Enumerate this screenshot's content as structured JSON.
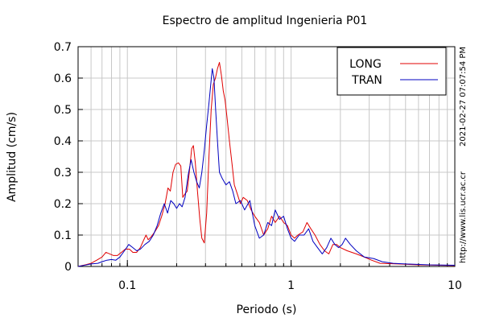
{
  "chart_data": {
    "type": "line",
    "title": "Espectro de amplitud Ingenieria P01",
    "xlabel": "Periodo (s)",
    "ylabel": "Amplitud (cm/s)",
    "x_scale": "log",
    "xlim": [
      0.05,
      10
    ],
    "ylim": [
      0,
      0.7
    ],
    "grid": true,
    "legend_position": "top-right",
    "x_tick_labels": [
      "0.1",
      "1",
      "10"
    ],
    "y_tick_labels": [
      "0",
      "0.1",
      "0.2",
      "0.3",
      "0.4",
      "0.5",
      "0.6",
      "0.7"
    ],
    "side_text_timestamp": "2021-02-27 07:07:54 PM",
    "side_text_url": "http://www.lis.ucr.ac.cr",
    "series": [
      {
        "name": "LONG",
        "color": "#e00000",
        "points": [
          [
            0.05,
            0.0
          ],
          [
            0.055,
            0.005
          ],
          [
            0.06,
            0.01
          ],
          [
            0.065,
            0.02
          ],
          [
            0.07,
            0.03
          ],
          [
            0.074,
            0.045
          ],
          [
            0.078,
            0.04
          ],
          [
            0.082,
            0.035
          ],
          [
            0.087,
            0.035
          ],
          [
            0.092,
            0.045
          ],
          [
            0.097,
            0.055
          ],
          [
            0.103,
            0.055
          ],
          [
            0.108,
            0.045
          ],
          [
            0.114,
            0.045
          ],
          [
            0.12,
            0.06
          ],
          [
            0.126,
            0.085
          ],
          [
            0.13,
            0.1
          ],
          [
            0.134,
            0.085
          ],
          [
            0.14,
            0.095
          ],
          [
            0.147,
            0.11
          ],
          [
            0.155,
            0.13
          ],
          [
            0.162,
            0.16
          ],
          [
            0.17,
            0.2
          ],
          [
            0.177,
            0.25
          ],
          [
            0.183,
            0.24
          ],
          [
            0.19,
            0.3
          ],
          [
            0.197,
            0.325
          ],
          [
            0.205,
            0.33
          ],
          [
            0.212,
            0.32
          ],
          [
            0.218,
            0.22
          ],
          [
            0.224,
            0.23
          ],
          [
            0.232,
            0.24
          ],
          [
            0.24,
            0.31
          ],
          [
            0.247,
            0.375
          ],
          [
            0.253,
            0.385
          ],
          [
            0.26,
            0.33
          ],
          [
            0.268,
            0.24
          ],
          [
            0.277,
            0.15
          ],
          [
            0.285,
            0.09
          ],
          [
            0.295,
            0.075
          ],
          [
            0.305,
            0.17
          ],
          [
            0.315,
            0.35
          ],
          [
            0.325,
            0.5
          ],
          [
            0.335,
            0.58
          ],
          [
            0.345,
            0.6
          ],
          [
            0.355,
            0.63
          ],
          [
            0.365,
            0.65
          ],
          [
            0.375,
            0.61
          ],
          [
            0.385,
            0.56
          ],
          [
            0.395,
            0.53
          ],
          [
            0.405,
            0.48
          ],
          [
            0.42,
            0.4
          ],
          [
            0.435,
            0.33
          ],
          [
            0.45,
            0.26
          ],
          [
            0.47,
            0.23
          ],
          [
            0.49,
            0.2
          ],
          [
            0.51,
            0.22
          ],
          [
            0.54,
            0.21
          ],
          [
            0.57,
            0.18
          ],
          [
            0.6,
            0.16
          ],
          [
            0.64,
            0.14
          ],
          [
            0.68,
            0.1
          ],
          [
            0.72,
            0.12
          ],
          [
            0.76,
            0.16
          ],
          [
            0.8,
            0.14
          ],
          [
            0.85,
            0.16
          ],
          [
            0.9,
            0.14
          ],
          [
            0.95,
            0.13
          ],
          [
            1.0,
            0.1
          ],
          [
            1.05,
            0.09
          ],
          [
            1.1,
            0.1
          ],
          [
            1.18,
            0.11
          ],
          [
            1.25,
            0.14
          ],
          [
            1.32,
            0.12
          ],
          [
            1.4,
            0.1
          ],
          [
            1.5,
            0.07
          ],
          [
            1.6,
            0.05
          ],
          [
            1.7,
            0.04
          ],
          [
            1.8,
            0.07
          ],
          [
            1.9,
            0.07
          ],
          [
            2.0,
            0.06
          ],
          [
            2.2,
            0.05
          ],
          [
            2.5,
            0.04
          ],
          [
            2.8,
            0.03
          ],
          [
            3.1,
            0.02
          ],
          [
            3.5,
            0.01
          ],
          [
            4.5,
            0.008
          ],
          [
            6.0,
            0.005
          ],
          [
            8.0,
            0.004
          ],
          [
            10.0,
            0.003
          ]
        ]
      },
      {
        "name": "TRAN",
        "color": "#0000c0",
        "points": [
          [
            0.05,
            0.0
          ],
          [
            0.055,
            0.004
          ],
          [
            0.06,
            0.008
          ],
          [
            0.066,
            0.01
          ],
          [
            0.07,
            0.015
          ],
          [
            0.075,
            0.02
          ],
          [
            0.08,
            0.022
          ],
          [
            0.085,
            0.02
          ],
          [
            0.09,
            0.03
          ],
          [
            0.096,
            0.05
          ],
          [
            0.102,
            0.07
          ],
          [
            0.108,
            0.06
          ],
          [
            0.114,
            0.05
          ],
          [
            0.12,
            0.055
          ],
          [
            0.128,
            0.07
          ],
          [
            0.136,
            0.08
          ],
          [
            0.144,
            0.1
          ],
          [
            0.152,
            0.13
          ],
          [
            0.16,
            0.17
          ],
          [
            0.168,
            0.2
          ],
          [
            0.176,
            0.17
          ],
          [
            0.184,
            0.21
          ],
          [
            0.192,
            0.2
          ],
          [
            0.2,
            0.185
          ],
          [
            0.208,
            0.2
          ],
          [
            0.216,
            0.19
          ],
          [
            0.225,
            0.22
          ],
          [
            0.235,
            0.29
          ],
          [
            0.245,
            0.34
          ],
          [
            0.255,
            0.3
          ],
          [
            0.265,
            0.27
          ],
          [
            0.275,
            0.25
          ],
          [
            0.285,
            0.3
          ],
          [
            0.295,
            0.37
          ],
          [
            0.305,
            0.45
          ],
          [
            0.315,
            0.52
          ],
          [
            0.323,
            0.58
          ],
          [
            0.33,
            0.63
          ],
          [
            0.338,
            0.6
          ],
          [
            0.346,
            0.5
          ],
          [
            0.355,
            0.4
          ],
          [
            0.365,
            0.3
          ],
          [
            0.38,
            0.28
          ],
          [
            0.4,
            0.26
          ],
          [
            0.42,
            0.27
          ],
          [
            0.44,
            0.24
          ],
          [
            0.46,
            0.2
          ],
          [
            0.49,
            0.21
          ],
          [
            0.52,
            0.18
          ],
          [
            0.56,
            0.21
          ],
          [
            0.6,
            0.13
          ],
          [
            0.64,
            0.09
          ],
          [
            0.68,
            0.1
          ],
          [
            0.72,
            0.14
          ],
          [
            0.76,
            0.13
          ],
          [
            0.8,
            0.18
          ],
          [
            0.85,
            0.15
          ],
          [
            0.9,
            0.16
          ],
          [
            0.95,
            0.12
          ],
          [
            1.0,
            0.09
          ],
          [
            1.05,
            0.08
          ],
          [
            1.12,
            0.1
          ],
          [
            1.2,
            0.1
          ],
          [
            1.28,
            0.12
          ],
          [
            1.36,
            0.08
          ],
          [
            1.45,
            0.06
          ],
          [
            1.55,
            0.04
          ],
          [
            1.65,
            0.06
          ],
          [
            1.75,
            0.09
          ],
          [
            1.85,
            0.07
          ],
          [
            1.95,
            0.06
          ],
          [
            2.05,
            0.07
          ],
          [
            2.15,
            0.09
          ],
          [
            2.3,
            0.07
          ],
          [
            2.5,
            0.05
          ],
          [
            2.8,
            0.03
          ],
          [
            3.2,
            0.025
          ],
          [
            3.6,
            0.015
          ],
          [
            4.2,
            0.01
          ],
          [
            5.0,
            0.008
          ],
          [
            7.0,
            0.005
          ],
          [
            10.0,
            0.004
          ]
        ]
      }
    ]
  }
}
